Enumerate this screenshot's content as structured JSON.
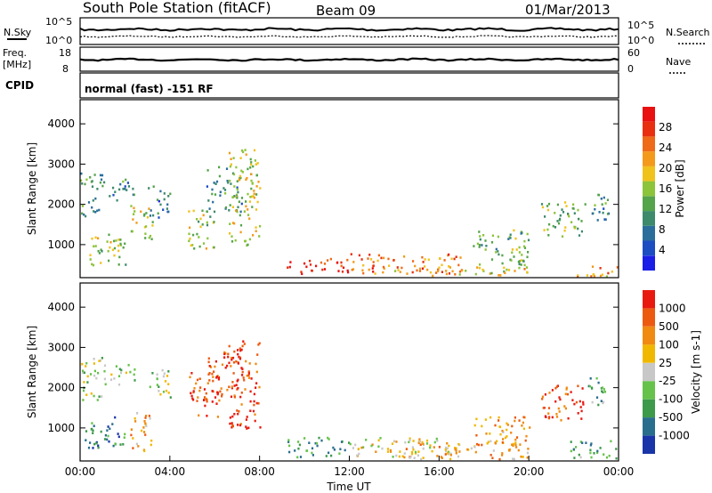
{
  "header": {
    "station": "South Pole Station (fitACF)",
    "beam": "Beam 09",
    "date": "01/Mar/2013"
  },
  "status": {
    "nsky_label": "N.Sky",
    "nsearch_label": "N.Search",
    "freq_label_1": "Freq.",
    "freq_label_2": "[MHz]",
    "cpid_label": "CPID",
    "nave_label": "Nave",
    "noise_ticks": [
      "10^5",
      "10^0"
    ],
    "freq_ticks": [
      "18",
      "8"
    ],
    "nave_ticks": [
      "60",
      "0"
    ],
    "cpid_text": "normal (fast) -151 RF"
  },
  "chart_data": [
    {
      "type": "heatmap",
      "name": "power",
      "ylabel": "Slant Range [km]",
      "xlabel": "",
      "colorbar_label": "Power [dB]",
      "colorbar_ticks": [
        "28",
        "24",
        "20",
        "16",
        "12",
        "8",
        "4"
      ],
      "colors": [
        "#1a1ee6",
        "#1c4ec2",
        "#2b6e9c",
        "#3d8a6c",
        "#55a34a",
        "#8cc43a",
        "#f0c21c",
        "#f39a1a",
        "#ee6a18",
        "#e83010",
        "#e81010"
      ],
      "y_ticks": [
        "4000",
        "3000",
        "2000",
        "1000"
      ],
      "x_ticks": [
        "00:00",
        "04:00",
        "08:00",
        "12:00",
        "16:00",
        "20:00",
        "00:00"
      ],
      "ylim": [
        180,
        4600
      ],
      "regions": [
        {
          "t0": 0.0,
          "t1": 1.0,
          "r0": 1700,
          "r1": 2800,
          "v": 0.35
        },
        {
          "t0": 0.2,
          "t1": 2.0,
          "r0": 500,
          "r1": 1300,
          "v": 0.5
        },
        {
          "t0": 1.0,
          "t1": 2.4,
          "r0": 2100,
          "r1": 2650,
          "v": 0.3
        },
        {
          "t0": 2.2,
          "t1": 3.2,
          "r0": 1100,
          "r1": 2000,
          "v": 0.55
        },
        {
          "t0": 3.0,
          "t1": 4.0,
          "r0": 1700,
          "r1": 2500,
          "v": 0.25
        },
        {
          "t0": 4.8,
          "t1": 6.0,
          "r0": 900,
          "r1": 1900,
          "v": 0.5
        },
        {
          "t0": 5.6,
          "t1": 7.2,
          "r0": 1800,
          "r1": 3000,
          "v": 0.35
        },
        {
          "t0": 6.6,
          "t1": 8.0,
          "r0": 1000,
          "r1": 3400,
          "v": 0.55
        },
        {
          "t0": 9.2,
          "t1": 12.0,
          "r0": 300,
          "r1": 700,
          "v": 0.9
        },
        {
          "t0": 12.0,
          "t1": 17.0,
          "r0": 300,
          "r1": 800,
          "v": 0.75
        },
        {
          "t0": 14.0,
          "t1": 20.0,
          "r0": 250,
          "r1": 500,
          "v": 0.6
        },
        {
          "t0": 17.5,
          "t1": 20.0,
          "r0": 500,
          "r1": 1400,
          "v": 0.4
        },
        {
          "t0": 20.5,
          "t1": 22.5,
          "r0": 1200,
          "r1": 2100,
          "v": 0.45
        },
        {
          "t0": 22.5,
          "t1": 23.6,
          "r0": 1600,
          "r1": 2300,
          "v": 0.3
        },
        {
          "t0": 21.8,
          "t1": 24.0,
          "r0": 220,
          "r1": 500,
          "v": 0.7
        }
      ]
    },
    {
      "type": "heatmap",
      "name": "velocity",
      "ylabel": "Slant Range [km]",
      "xlabel": "Time UT",
      "colorbar_label": "Velocity [m s-1]",
      "colorbar_ticks": [
        "1000",
        "500",
        "100",
        "25",
        "-25",
        "-100",
        "-500",
        "-1000"
      ],
      "colors": [
        "#1a35a8",
        "#2a6e8e",
        "#3d9a4a",
        "#66c24a",
        "#c8c8c8",
        "#f0b800",
        "#f08a10",
        "#ec5a10",
        "#e81a10"
      ],
      "y_ticks": [
        "4000",
        "3000",
        "2000",
        "1000"
      ],
      "x_ticks": [
        "00:00",
        "04:00",
        "08:00",
        "12:00",
        "16:00",
        "20:00",
        "00:00"
      ],
      "ylim": [
        180,
        4600
      ],
      "regions": [
        {
          "t0": 0.0,
          "t1": 1.0,
          "r0": 1700,
          "r1": 2800,
          "v": 0.45
        },
        {
          "t0": 0.2,
          "t1": 2.0,
          "r0": 500,
          "r1": 1300,
          "v": 0.2
        },
        {
          "t0": 1.0,
          "t1": 2.4,
          "r0": 2100,
          "r1": 2650,
          "v": 0.45
        },
        {
          "t0": 2.2,
          "t1": 3.2,
          "r0": 400,
          "r1": 1400,
          "v": 0.65
        },
        {
          "t0": 3.0,
          "t1": 4.0,
          "r0": 1700,
          "r1": 2500,
          "v": 0.45
        },
        {
          "t0": 4.8,
          "t1": 6.2,
          "r0": 1300,
          "r1": 2400,
          "v": 0.9
        },
        {
          "t0": 5.6,
          "t1": 7.2,
          "r0": 1800,
          "r1": 3000,
          "v": 0.85
        },
        {
          "t0": 6.6,
          "t1": 8.0,
          "r0": 1000,
          "r1": 3200,
          "v": 0.9
        },
        {
          "t0": 9.2,
          "t1": 12.0,
          "r0": 300,
          "r1": 800,
          "v": 0.25
        },
        {
          "t0": 12.0,
          "t1": 17.0,
          "r0": 300,
          "r1": 800,
          "v": 0.55
        },
        {
          "t0": 14.0,
          "t1": 20.0,
          "r0": 250,
          "r1": 700,
          "v": 0.65
        },
        {
          "t0": 17.5,
          "t1": 20.0,
          "r0": 600,
          "r1": 1300,
          "v": 0.7
        },
        {
          "t0": 20.5,
          "t1": 22.5,
          "r0": 1200,
          "r1": 2100,
          "v": 0.85
        },
        {
          "t0": 22.5,
          "t1": 23.6,
          "r0": 1600,
          "r1": 2300,
          "v": 0.35
        },
        {
          "t0": 21.8,
          "t1": 24.0,
          "r0": 220,
          "r1": 700,
          "v": 0.3
        }
      ]
    }
  ]
}
